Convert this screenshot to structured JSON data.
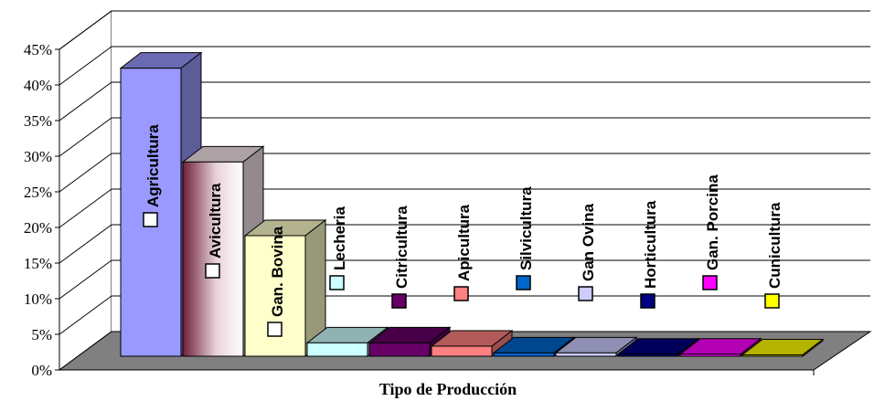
{
  "chart_data": {
    "type": "bar",
    "xlabel": "Tipo de Producción",
    "ylabel": "",
    "ylim": [
      0,
      45
    ],
    "yticks": [
      "0%",
      "5%",
      "10%",
      "15%",
      "20%",
      "25%",
      "30%",
      "35%",
      "40%",
      "45%"
    ],
    "grid": true,
    "categories": [
      "Agricultura",
      "Avicultura",
      "Gan. Bovina",
      "Lecheria",
      "Citricultura",
      "Apicultura",
      "Silvicultura",
      "Gan Ovina",
      "Horticultura",
      "Gan. Porcina",
      "Cunicultura"
    ],
    "values": [
      43,
      29,
      18,
      2,
      2,
      1.5,
      0.5,
      0.5,
      0.3,
      0.3,
      0.2
    ],
    "colors": [
      "#9999FF",
      "#F5E6EB",
      "#FFFFCC",
      "#CCFFFF",
      "#660066",
      "#FF8080",
      "#0066CC",
      "#CCCCFF",
      "#000080",
      "#FF00FF",
      "#FFFF00"
    ]
  }
}
